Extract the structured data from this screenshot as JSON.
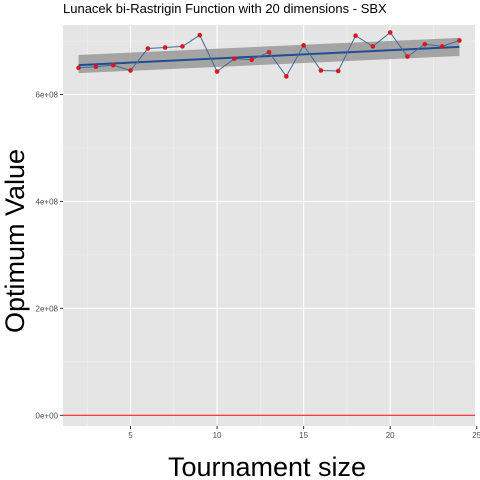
{
  "chart_data": {
    "type": "line",
    "title": "Lunacek bi-Rastrigin Function with 20 dimensions -  SBX",
    "xlabel": "Tournament size",
    "ylabel": "Optimum Value",
    "xlim": [
      1.1,
      24.9
    ],
    "ylim": [
      -20000000,
      730000000
    ],
    "x_ticks": [
      5,
      10,
      15,
      20,
      25
    ],
    "y_ticks": [
      0,
      200000000,
      400000000,
      600000000
    ],
    "x_tick_labels": [
      "5",
      "10",
      "15",
      "20",
      "25"
    ],
    "y_tick_labels": [
      "0e+00",
      "2e+08",
      "4e+08",
      "6e+08"
    ],
    "grid": true,
    "background": "#e5e5e5",
    "series": [
      {
        "x": [
          2,
          3,
          4,
          5,
          6,
          7,
          8,
          9,
          10,
          11,
          12,
          13,
          14,
          15,
          16,
          17,
          18,
          19,
          20,
          21,
          22,
          23,
          24
        ],
        "values": [
          650000000,
          652000000,
          655000000,
          645000000,
          686000000,
          688000000,
          690000000,
          711000000,
          643000000,
          667000000,
          665000000,
          679000000,
          634000000,
          692000000,
          645000000,
          644000000,
          710000000,
          690000000,
          716000000,
          671000000,
          694000000,
          690000000,
          701000000
        ],
        "line_color": "#3e6d99",
        "point_color": "#d7191c"
      }
    ],
    "trend": {
      "method": "lm",
      "line_color": "#1f4e94",
      "band_color": "#999999",
      "start": {
        "x": 2,
        "y": 655000000,
        "low": 640000000,
        "high": 674000000
      },
      "end": {
        "x": 24,
        "y": 689000000,
        "low": 672000000,
        "high": 706000000
      }
    },
    "hline": {
      "y": 0,
      "color": "#ff0000"
    }
  }
}
